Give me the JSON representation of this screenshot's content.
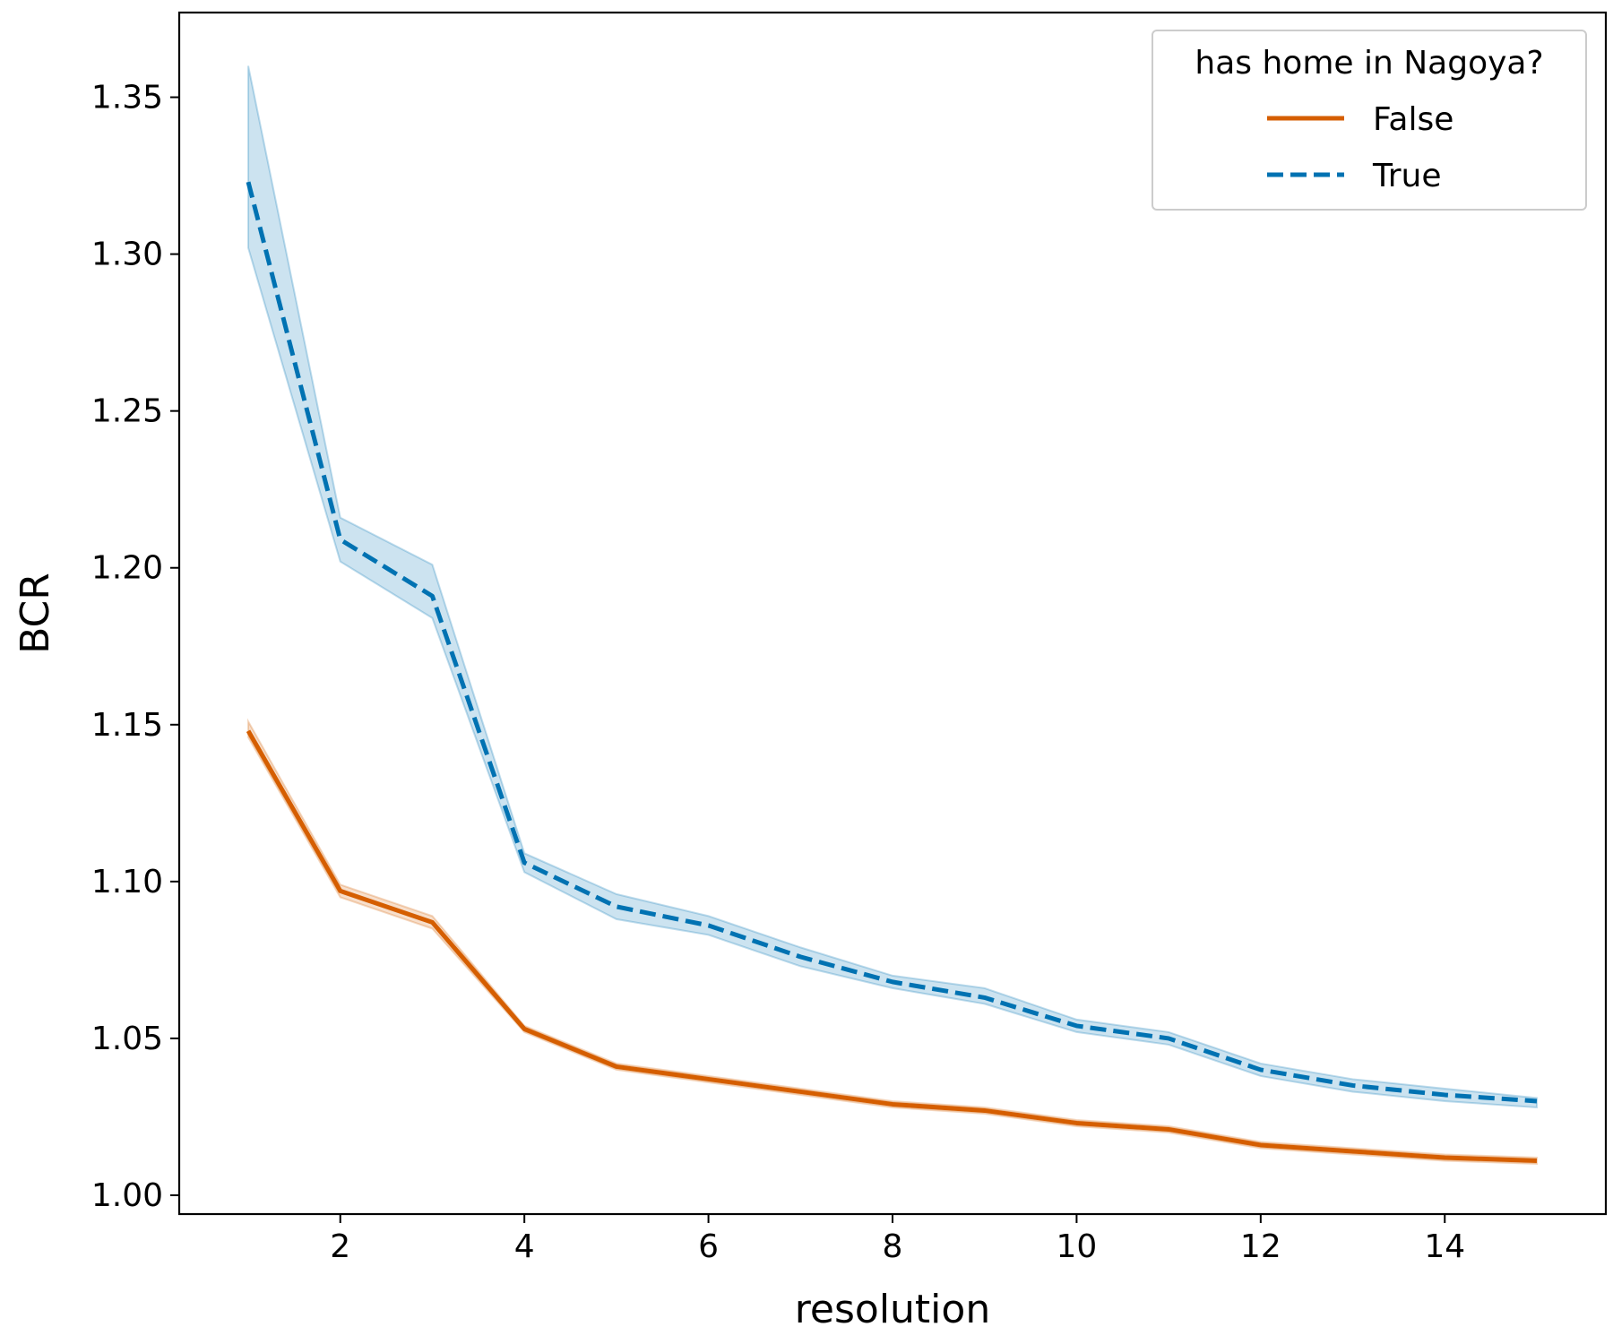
{
  "chart_data": {
    "type": "line",
    "xlabel": "resolution",
    "ylabel": "BCR",
    "xlim": [
      0.25,
      15.75
    ],
    "ylim": [
      0.994,
      1.377
    ],
    "x_ticks": [
      2,
      4,
      6,
      8,
      10,
      12,
      14
    ],
    "y_ticks": [
      1.0,
      1.05,
      1.1,
      1.15,
      1.2,
      1.25,
      1.3,
      1.35
    ],
    "x": [
      1,
      2,
      3,
      4,
      5,
      6,
      7,
      8,
      9,
      10,
      11,
      12,
      13,
      14,
      15
    ],
    "grid": false,
    "legend": {
      "title": "has home in Nagoya?",
      "placement": "top-right"
    },
    "series": [
      {
        "name": "False",
        "color": "#d55e00",
        "style": "solid",
        "values": [
          1.148,
          1.097,
          1.087,
          1.053,
          1.041,
          1.037,
          1.033,
          1.029,
          1.027,
          1.023,
          1.021,
          1.016,
          1.014,
          1.012,
          1.011
        ],
        "ci_low": [
          1.146,
          1.095,
          1.085,
          1.052,
          1.04,
          1.036,
          1.032,
          1.028,
          1.026,
          1.022,
          1.02,
          1.015,
          1.013,
          1.011,
          1.01
        ],
        "ci_high": [
          1.151,
          1.099,
          1.089,
          1.054,
          1.042,
          1.038,
          1.034,
          1.03,
          1.028,
          1.024,
          1.022,
          1.017,
          1.015,
          1.013,
          1.012
        ]
      },
      {
        "name": "True",
        "color": "#0072b2",
        "style": "dashed",
        "values": [
          1.323,
          1.209,
          1.191,
          1.106,
          1.092,
          1.086,
          1.076,
          1.068,
          1.063,
          1.054,
          1.05,
          1.04,
          1.035,
          1.032,
          1.03
        ],
        "ci_low": [
          1.302,
          1.202,
          1.184,
          1.103,
          1.088,
          1.083,
          1.073,
          1.066,
          1.061,
          1.052,
          1.048,
          1.038,
          1.033,
          1.03,
          1.028
        ],
        "ci_high": [
          1.36,
          1.216,
          1.201,
          1.109,
          1.096,
          1.089,
          1.079,
          1.07,
          1.066,
          1.056,
          1.052,
          1.042,
          1.037,
          1.034,
          1.031
        ]
      }
    ]
  }
}
